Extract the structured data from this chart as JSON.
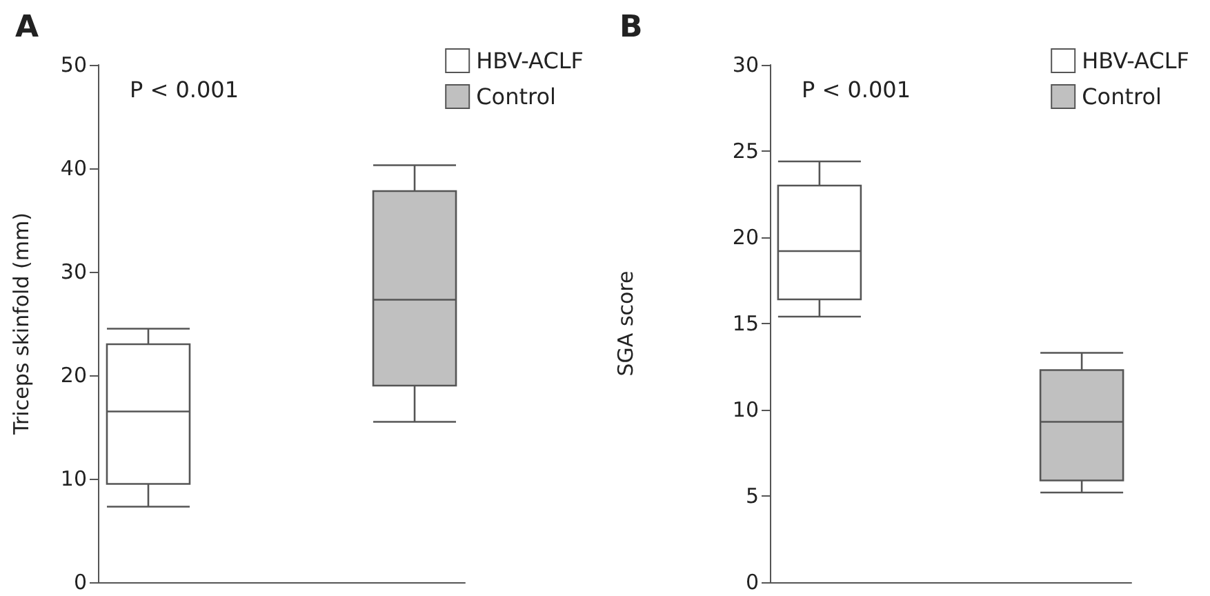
{
  "chart_data": [
    {
      "type": "box",
      "title": "A",
      "ylabel": "Triceps skinfold (mm)",
      "categories": [
        null,
        null
      ],
      "ylim": [
        0,
        50
      ],
      "yticks": [
        0,
        10,
        20,
        30,
        40,
        50
      ],
      "tick_labels": "y",
      "grid": false,
      "legend": "top right",
      "annotations": [
        "P < 0.001"
      ],
      "series": [
        {
          "name": "HBV-ACLF",
          "color": "#ffffff",
          "boxes": [
            {
              "low": 7.3,
              "q1": 9.5,
              "median": 16.5,
              "q3": 23,
              "high": 24.5
            },
            null
          ]
        },
        {
          "name": "Control",
          "color": "#c0c0c0",
          "boxes": [
            null,
            {
              "low": 15.5,
              "q1": 19,
              "median": 27.3,
              "q3": 37.8,
              "high": 40.3
            }
          ]
        }
      ]
    },
    {
      "type": "box",
      "title": "B",
      "ylabel": "SGA score",
      "categories": [
        null,
        null
      ],
      "ylim": [
        0,
        30
      ],
      "yticks": [
        0,
        5,
        10,
        15,
        20,
        25,
        30
      ],
      "tick_labels": "y",
      "grid": false,
      "legend": "top right",
      "annotations": [
        "P < 0.001"
      ],
      "series": [
        {
          "name": "HBV-ACLF",
          "color": "#ffffff",
          "boxes": [
            {
              "low": 15.4,
              "q1": 16.4,
              "median": 19.2,
              "q3": 23,
              "high": 24.4
            },
            null
          ]
        },
        {
          "name": "Control",
          "color": "#c0c0c0",
          "boxes": [
            null,
            {
              "low": 5.2,
              "q1": 5.9,
              "median": 9.3,
              "q3": 12.3,
              "high": 13.3
            }
          ]
        }
      ]
    }
  ]
}
